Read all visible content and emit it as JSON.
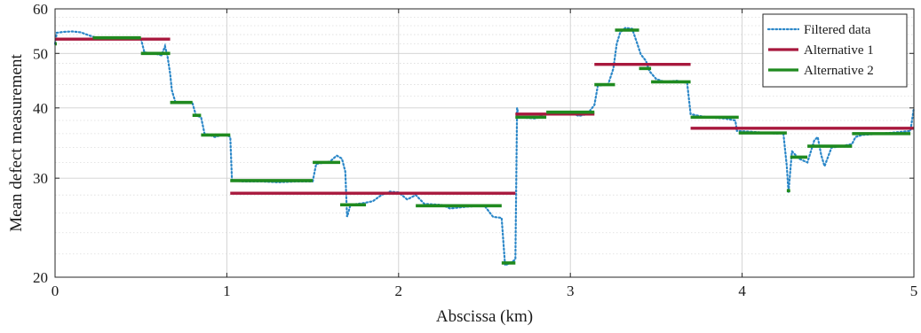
{
  "chart_data": {
    "type": "line",
    "title": "",
    "xlabel": "Abscissa (km)",
    "ylabel": "Mean defect measurement",
    "xlim": [
      0,
      5
    ],
    "ylim": [
      20,
      60
    ],
    "yscale": "log",
    "grid": true,
    "legend_position": "top-right",
    "x_ticks": [
      0,
      1,
      2,
      3,
      4,
      5
    ],
    "x_tick_labels": [
      "0",
      "1",
      "2",
      "3",
      "4",
      "5"
    ],
    "y_ticks": [
      20,
      30,
      40,
      50,
      60
    ],
    "y_tick_labels": [
      "20",
      "30",
      "40",
      "50",
      "60"
    ],
    "colors": {
      "filtered": "#2b87c8",
      "alt1": "#a8183d",
      "alt2": "#1f8a1f"
    },
    "series": [
      {
        "name": "Filtered data",
        "style": "dotted",
        "points": [
          [
            0.0,
            52.0
          ],
          [
            0.01,
            54.4
          ],
          [
            0.05,
            54.6
          ],
          [
            0.1,
            54.7
          ],
          [
            0.15,
            54.5
          ],
          [
            0.2,
            53.8
          ],
          [
            0.25,
            53.2
          ],
          [
            0.3,
            53.0
          ],
          [
            0.35,
            53.2
          ],
          [
            0.4,
            53.3
          ],
          [
            0.45,
            53.2
          ],
          [
            0.5,
            53.1
          ],
          [
            0.52,
            50.2
          ],
          [
            0.58,
            50.0
          ],
          [
            0.62,
            49.6
          ],
          [
            0.64,
            51.5
          ],
          [
            0.655,
            49.3
          ],
          [
            0.67,
            46.0
          ],
          [
            0.68,
            43.0
          ],
          [
            0.69,
            42.0
          ],
          [
            0.7,
            41.0
          ],
          [
            0.75,
            40.9
          ],
          [
            0.8,
            40.8
          ],
          [
            0.82,
            38.8
          ],
          [
            0.85,
            38.5
          ],
          [
            0.87,
            36.0
          ],
          [
            0.9,
            35.8
          ],
          [
            0.93,
            35.5
          ],
          [
            0.97,
            35.8
          ],
          [
            1.0,
            35.8
          ],
          [
            1.02,
            35.5
          ],
          [
            1.03,
            29.7
          ],
          [
            1.1,
            29.6
          ],
          [
            1.2,
            29.6
          ],
          [
            1.3,
            29.5
          ],
          [
            1.4,
            29.6
          ],
          [
            1.5,
            29.6
          ],
          [
            1.52,
            31.8
          ],
          [
            1.6,
            32.1
          ],
          [
            1.64,
            32.9
          ],
          [
            1.67,
            32.5
          ],
          [
            1.69,
            30.8
          ],
          [
            1.7,
            25.6
          ],
          [
            1.72,
            26.9
          ],
          [
            1.8,
            27.1
          ],
          [
            1.85,
            27.3
          ],
          [
            1.9,
            28.0
          ],
          [
            1.95,
            28.4
          ],
          [
            2.0,
            28.3
          ],
          [
            2.05,
            27.5
          ],
          [
            2.1,
            28.0
          ],
          [
            2.15,
            27.0
          ],
          [
            2.25,
            26.9
          ],
          [
            2.3,
            26.5
          ],
          [
            2.4,
            26.7
          ],
          [
            2.5,
            26.8
          ],
          [
            2.55,
            25.6
          ],
          [
            2.6,
            25.5
          ],
          [
            2.62,
            21.0
          ],
          [
            2.65,
            21.2
          ],
          [
            2.68,
            21.5
          ],
          [
            2.69,
            40.0
          ],
          [
            2.7,
            38.5
          ],
          [
            2.8,
            38.3
          ],
          [
            2.85,
            39.0
          ],
          [
            2.9,
            39.3
          ],
          [
            3.0,
            39.2
          ],
          [
            3.05,
            38.7
          ],
          [
            3.1,
            39.0
          ],
          [
            3.14,
            40.5
          ],
          [
            3.16,
            43.8
          ],
          [
            3.22,
            44.0
          ],
          [
            3.25,
            47.0
          ],
          [
            3.27,
            52.0
          ],
          [
            3.29,
            54.5
          ],
          [
            3.32,
            55.5
          ],
          [
            3.36,
            55.3
          ],
          [
            3.39,
            52.0
          ],
          [
            3.41,
            49.8
          ],
          [
            3.44,
            48.5
          ],
          [
            3.46,
            46.5
          ],
          [
            3.5,
            45.0
          ],
          [
            3.55,
            44.5
          ],
          [
            3.62,
            44.7
          ],
          [
            3.68,
            44.3
          ],
          [
            3.7,
            39.0
          ],
          [
            3.75,
            38.7
          ],
          [
            3.8,
            38.5
          ],
          [
            3.9,
            38.3
          ],
          [
            3.96,
            38.0
          ],
          [
            3.97,
            36.4
          ],
          [
            4.1,
            36.2
          ],
          [
            4.2,
            36.0
          ],
          [
            4.24,
            36.1
          ],
          [
            4.26,
            31.5
          ],
          [
            4.27,
            28.3
          ],
          [
            4.29,
            33.5
          ],
          [
            4.33,
            32.5
          ],
          [
            4.38,
            32.0
          ],
          [
            4.42,
            35.0
          ],
          [
            4.44,
            35.5
          ],
          [
            4.46,
            33.0
          ],
          [
            4.48,
            31.5
          ],
          [
            4.52,
            34.0
          ],
          [
            4.58,
            34.2
          ],
          [
            4.64,
            34.5
          ],
          [
            4.66,
            35.5
          ],
          [
            4.7,
            35.8
          ],
          [
            4.8,
            36.0
          ],
          [
            4.9,
            36.2
          ],
          [
            4.98,
            36.4
          ],
          [
            5.0,
            40.0
          ]
        ]
      },
      {
        "name": "Alternative 1",
        "style": "solid",
        "segments": [
          {
            "x": [
              0.0,
              0.67
            ],
            "y": 53.0
          },
          {
            "x": [
              1.02,
              2.68
            ],
            "y": 28.2
          },
          {
            "x": [
              2.68,
              3.14
            ],
            "y": 39.0
          },
          {
            "x": [
              3.14,
              3.7
            ],
            "y": 47.8
          },
          {
            "x": [
              3.7,
              5.0
            ],
            "y": 36.8
          }
        ]
      },
      {
        "name": "Alternative 2",
        "style": "solid",
        "segments": [
          {
            "x": [
              0.0,
              0.01
            ],
            "y": 52.0
          },
          {
            "x": [
              0.22,
              0.5
            ],
            "y": 53.3
          },
          {
            "x": [
              0.5,
              0.67
            ],
            "y": 50.0
          },
          {
            "x": [
              0.67,
              0.8
            ],
            "y": 40.9
          },
          {
            "x": [
              0.8,
              0.85
            ],
            "y": 38.8
          },
          {
            "x": [
              0.85,
              1.02
            ],
            "y": 35.8
          },
          {
            "x": [
              1.02,
              1.5
            ],
            "y": 29.7
          },
          {
            "x": [
              1.5,
              1.66
            ],
            "y": 32.0
          },
          {
            "x": [
              1.66,
              1.81
            ],
            "y": 26.9
          },
          {
            "x": [
              2.1,
              2.6
            ],
            "y": 26.8
          },
          {
            "x": [
              2.6,
              2.68
            ],
            "y": 21.2
          },
          {
            "x": [
              2.68,
              2.86
            ],
            "y": 38.5
          },
          {
            "x": [
              2.86,
              3.14
            ],
            "y": 39.3
          },
          {
            "x": [
              3.14,
              3.26
            ],
            "y": 44.0
          },
          {
            "x": [
              3.26,
              3.4
            ],
            "y": 55.0
          },
          {
            "x": [
              3.4,
              3.47
            ],
            "y": 47.0
          },
          {
            "x": [
              3.47,
              3.7
            ],
            "y": 44.5
          },
          {
            "x": [
              3.7,
              3.98
            ],
            "y": 38.5
          },
          {
            "x": [
              3.98,
              4.26
            ],
            "y": 36.1
          },
          {
            "x": [
              4.26,
              4.28
            ],
            "y": 28.5
          },
          {
            "x": [
              4.28,
              4.38
            ],
            "y": 32.7
          },
          {
            "x": [
              4.38,
              4.64
            ],
            "y": 34.2
          },
          {
            "x": [
              4.64,
              4.98
            ],
            "y": 36.0
          }
        ]
      }
    ]
  }
}
